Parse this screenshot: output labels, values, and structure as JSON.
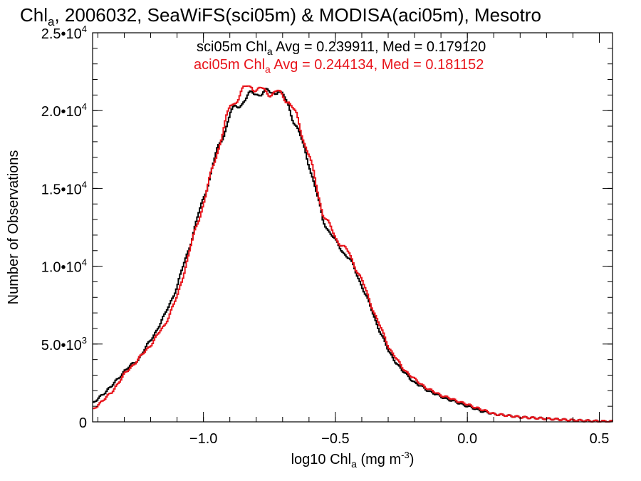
{
  "chart_data": {
    "type": "line",
    "step": true,
    "title": {
      "before_sub": "Chl",
      "sub": "a",
      "after_sub": ", 2006032, SeaWiFS(sci05m) & MODISA(aci05m), Mesotro"
    },
    "xlabel": {
      "before_sub": "log10 Chl",
      "sub": "a",
      "after_sub": " (mg m",
      "sup": "-3",
      "close": ")"
    },
    "ylabel": "Number of Observations",
    "xlim": [
      -1.42,
      0.55
    ],
    "ylim": [
      0,
      25000
    ],
    "xticks": [
      {
        "value": -1.0,
        "label": "−1.0"
      },
      {
        "value": -0.5,
        "label": "−0.5"
      },
      {
        "value": 0.0,
        "label": "0.0"
      },
      {
        "value": 0.5,
        "label": "0.5"
      }
    ],
    "xminor_step": 0.1,
    "yticks": [
      {
        "value": 0,
        "mant": "0",
        "exp": ""
      },
      {
        "value": 5000,
        "mant": "5.0•10",
        "exp": "3"
      },
      {
        "value": 10000,
        "mant": "1.0•10",
        "exp": "4"
      },
      {
        "value": 15000,
        "mant": "1.5•10",
        "exp": "4"
      },
      {
        "value": 20000,
        "mant": "2.0•10",
        "exp": "4"
      },
      {
        "value": 25000,
        "mant": "2.5•10",
        "exp": "4"
      }
    ],
    "yminor_step": 1000,
    "grid": false,
    "legend": [
      {
        "before_sub": "sci05m Chl",
        "sub": "a",
        "after_sub": " Avg = 0.239911, Med = 0.179120",
        "color": "#000000"
      },
      {
        "before_sub": "aci05m Chl",
        "sub": "a",
        "after_sub": " Avg = 0.244134, Med = 0.181152",
        "color": "#e8141b"
      }
    ],
    "series": [
      {
        "name": "sci05m",
        "color": "#000000",
        "x": [
          -1.42,
          -1.35,
          -1.3,
          -1.25,
          -1.2,
          -1.15,
          -1.1,
          -1.05,
          -1.0,
          -0.95,
          -0.9,
          -0.85,
          -0.8,
          -0.75,
          -0.72,
          -0.7,
          -0.68,
          -0.65,
          -0.6,
          -0.55,
          -0.5,
          -0.45,
          -0.4,
          -0.35,
          -0.3,
          -0.25,
          -0.2,
          -0.15,
          -0.1,
          -0.05,
          0.0,
          0.05,
          0.1,
          0.2,
          0.3,
          0.4,
          0.5,
          0.55
        ],
        "values": [
          1200,
          2300,
          3300,
          4000,
          5300,
          6800,
          8800,
          11600,
          14500,
          17400,
          19800,
          20700,
          21200,
          21100,
          21400,
          20800,
          20300,
          19000,
          16500,
          13000,
          11500,
          10500,
          8700,
          6500,
          4500,
          3300,
          2500,
          2000,
          1600,
          1300,
          1000,
          700,
          500,
          300,
          200,
          100,
          40,
          20
        ]
      },
      {
        "name": "aci05m",
        "color": "#e8141b",
        "x": [
          -1.42,
          -1.35,
          -1.3,
          -1.25,
          -1.2,
          -1.15,
          -1.1,
          -1.05,
          -1.0,
          -0.95,
          -0.9,
          -0.85,
          -0.82,
          -0.8,
          -0.75,
          -0.72,
          -0.7,
          -0.68,
          -0.65,
          -0.6,
          -0.55,
          -0.5,
          -0.45,
          -0.4,
          -0.35,
          -0.3,
          -0.25,
          -0.2,
          -0.15,
          -0.1,
          -0.05,
          0.0,
          0.05,
          0.1,
          0.2,
          0.3,
          0.4,
          0.5,
          0.55
        ],
        "values": [
          800,
          1900,
          3100,
          4000,
          5000,
          6200,
          8100,
          11300,
          14200,
          17400,
          20300,
          21300,
          21700,
          21300,
          21200,
          21100,
          20900,
          20700,
          19600,
          17000,
          13400,
          11800,
          10800,
          9000,
          6800,
          4800,
          3500,
          2700,
          2100,
          1700,
          1400,
          1100,
          800,
          500,
          300,
          200,
          100,
          40,
          20
        ]
      }
    ]
  }
}
